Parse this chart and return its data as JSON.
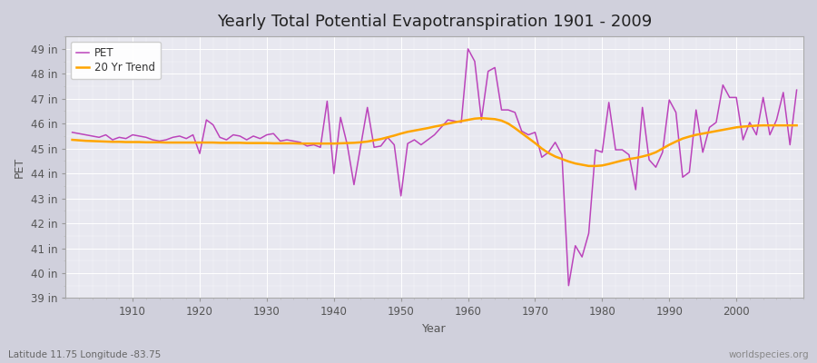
{
  "title": "Yearly Total Potential Evapotranspiration 1901 - 2009",
  "xlabel": "Year",
  "ylabel": "PET",
  "subtitle_left": "Latitude 11.75 Longitude -83.75",
  "subtitle_right": "worldspecies.org",
  "pet_color": "#BB44BB",
  "trend_color": "#FFA500",
  "fig_bg": "#D0D0DC",
  "plot_bg": "#E8E8F0",
  "years": [
    1901,
    1902,
    1903,
    1904,
    1905,
    1906,
    1907,
    1908,
    1909,
    1910,
    1911,
    1912,
    1913,
    1914,
    1915,
    1916,
    1917,
    1918,
    1919,
    1920,
    1921,
    1922,
    1923,
    1924,
    1925,
    1926,
    1927,
    1928,
    1929,
    1930,
    1931,
    1932,
    1933,
    1934,
    1935,
    1936,
    1937,
    1938,
    1939,
    1940,
    1941,
    1942,
    1943,
    1944,
    1945,
    1946,
    1947,
    1948,
    1949,
    1950,
    1951,
    1952,
    1953,
    1954,
    1955,
    1956,
    1957,
    1958,
    1959,
    1960,
    1961,
    1962,
    1963,
    1964,
    1965,
    1966,
    1967,
    1968,
    1969,
    1970,
    1971,
    1972,
    1973,
    1974,
    1975,
    1976,
    1977,
    1978,
    1979,
    1980,
    1981,
    1982,
    1983,
    1984,
    1985,
    1986,
    1987,
    1988,
    1989,
    1990,
    1991,
    1992,
    1993,
    1994,
    1995,
    1996,
    1997,
    1998,
    1999,
    2000,
    2001,
    2002,
    2003,
    2004,
    2005,
    2006,
    2007,
    2008,
    2009
  ],
  "pet_values": [
    45.65,
    45.6,
    45.55,
    45.5,
    45.45,
    45.55,
    45.35,
    45.45,
    45.4,
    45.55,
    45.5,
    45.45,
    45.35,
    45.3,
    45.35,
    45.45,
    45.5,
    45.4,
    45.55,
    44.8,
    46.15,
    45.95,
    45.45,
    45.35,
    45.55,
    45.5,
    45.35,
    45.5,
    45.4,
    45.55,
    45.6,
    45.3,
    45.35,
    45.3,
    45.25,
    45.1,
    45.15,
    45.05,
    46.9,
    44.0,
    46.25,
    45.15,
    43.55,
    45.1,
    46.65,
    45.05,
    45.1,
    45.45,
    45.15,
    43.1,
    45.2,
    45.35,
    45.15,
    45.35,
    45.55,
    45.85,
    46.15,
    46.1,
    46.05,
    49.0,
    48.5,
    46.15,
    48.1,
    48.25,
    46.55,
    46.55,
    46.45,
    45.7,
    45.55,
    45.65,
    44.65,
    44.85,
    45.25,
    44.75,
    39.5,
    41.1,
    40.65,
    41.6,
    44.95,
    44.85,
    46.85,
    44.95,
    44.95,
    44.75,
    43.35,
    46.65,
    44.55,
    44.25,
    44.85,
    46.95,
    46.45,
    43.85,
    44.05,
    46.55,
    44.85,
    45.85,
    46.05,
    47.55,
    47.05,
    47.05,
    45.35,
    46.05,
    45.55,
    47.05,
    45.55,
    46.15,
    47.25,
    45.15,
    47.35
  ],
  "trend_values": [
    45.35,
    45.33,
    45.31,
    45.3,
    45.29,
    45.28,
    45.27,
    45.27,
    45.26,
    45.26,
    45.26,
    45.25,
    45.25,
    45.25,
    45.24,
    45.24,
    45.24,
    45.24,
    45.24,
    45.24,
    45.24,
    45.24,
    45.23,
    45.23,
    45.23,
    45.23,
    45.22,
    45.22,
    45.22,
    45.22,
    45.21,
    45.21,
    45.21,
    45.21,
    45.2,
    45.2,
    45.2,
    45.2,
    45.2,
    45.2,
    45.21,
    45.22,
    45.23,
    45.25,
    45.28,
    45.33,
    45.38,
    45.45,
    45.52,
    45.6,
    45.67,
    45.72,
    45.77,
    45.82,
    45.88,
    45.93,
    46.0,
    46.05,
    46.1,
    46.15,
    46.2,
    46.22,
    46.2,
    46.18,
    46.12,
    46.0,
    45.82,
    45.62,
    45.42,
    45.22,
    45.0,
    44.82,
    44.68,
    44.58,
    44.48,
    44.4,
    44.35,
    44.3,
    44.3,
    44.32,
    44.38,
    44.45,
    44.52,
    44.58,
    44.62,
    44.68,
    44.75,
    44.85,
    45.0,
    45.15,
    45.28,
    45.4,
    45.48,
    45.55,
    45.6,
    45.65,
    45.7,
    45.75,
    45.8,
    45.85,
    45.88,
    45.9,
    45.92,
    45.93,
    45.93,
    45.93,
    45.93,
    45.93,
    45.93
  ],
  "ylim": [
    39,
    49.5
  ],
  "yticks": [
    39,
    40,
    41,
    42,
    43,
    44,
    45,
    46,
    47,
    48,
    49
  ],
  "ytick_labels": [
    "39 in",
    "40 in",
    "41 in",
    "42 in",
    "43 in",
    "44 in",
    "45 in",
    "46 in",
    "47 in",
    "48 in",
    "49 in"
  ],
  "xlim": [
    1900,
    2010
  ],
  "xticks": [
    1910,
    1920,
    1930,
    1940,
    1950,
    1960,
    1970,
    1980,
    1990,
    2000
  ],
  "legend_pet_label": "PET",
  "legend_trend_label": "20 Yr Trend",
  "title_fontsize": 13,
  "axis_label_fontsize": 9,
  "tick_fontsize": 8.5,
  "legend_fontsize": 8.5,
  "pet_linewidth": 1.1,
  "trend_linewidth": 1.8
}
